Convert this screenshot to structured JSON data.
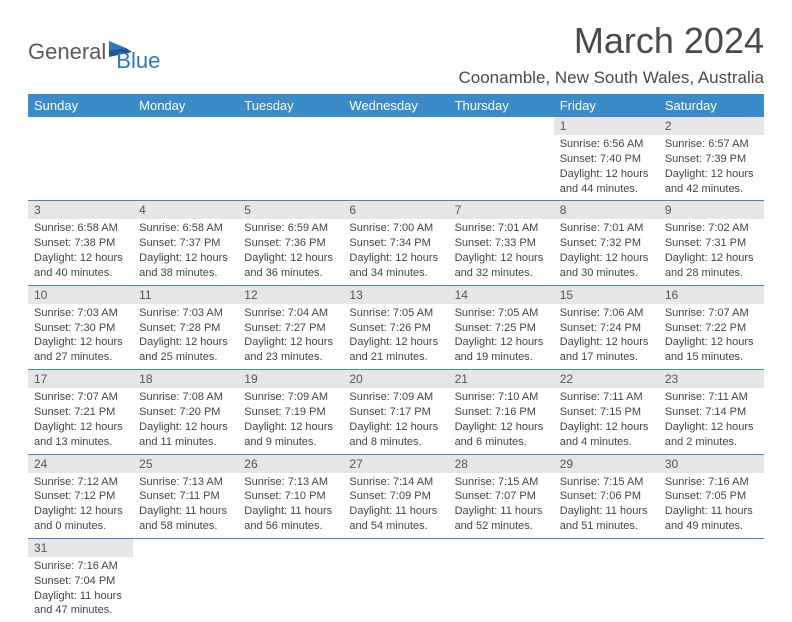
{
  "logo": {
    "text1": "General",
    "text2": "Blue"
  },
  "title": "March 2024",
  "location": "Coonamble, New South Wales, Australia",
  "header_color": "#3b8bc9",
  "daynum_bg": "#e6e6e6",
  "days_of_week": [
    "Sunday",
    "Monday",
    "Tuesday",
    "Wednesday",
    "Thursday",
    "Friday",
    "Saturday"
  ],
  "weeks": [
    [
      null,
      null,
      null,
      null,
      null,
      {
        "n": "1",
        "sr": "6:56 AM",
        "ss": "7:40 PM",
        "dl": "12 hours and 44 minutes."
      },
      {
        "n": "2",
        "sr": "6:57 AM",
        "ss": "7:39 PM",
        "dl": "12 hours and 42 minutes."
      }
    ],
    [
      {
        "n": "3",
        "sr": "6:58 AM",
        "ss": "7:38 PM",
        "dl": "12 hours and 40 minutes."
      },
      {
        "n": "4",
        "sr": "6:58 AM",
        "ss": "7:37 PM",
        "dl": "12 hours and 38 minutes."
      },
      {
        "n": "5",
        "sr": "6:59 AM",
        "ss": "7:36 PM",
        "dl": "12 hours and 36 minutes."
      },
      {
        "n": "6",
        "sr": "7:00 AM",
        "ss": "7:34 PM",
        "dl": "12 hours and 34 minutes."
      },
      {
        "n": "7",
        "sr": "7:01 AM",
        "ss": "7:33 PM",
        "dl": "12 hours and 32 minutes."
      },
      {
        "n": "8",
        "sr": "7:01 AM",
        "ss": "7:32 PM",
        "dl": "12 hours and 30 minutes."
      },
      {
        "n": "9",
        "sr": "7:02 AM",
        "ss": "7:31 PM",
        "dl": "12 hours and 28 minutes."
      }
    ],
    [
      {
        "n": "10",
        "sr": "7:03 AM",
        "ss": "7:30 PM",
        "dl": "12 hours and 27 minutes."
      },
      {
        "n": "11",
        "sr": "7:03 AM",
        "ss": "7:28 PM",
        "dl": "12 hours and 25 minutes."
      },
      {
        "n": "12",
        "sr": "7:04 AM",
        "ss": "7:27 PM",
        "dl": "12 hours and 23 minutes."
      },
      {
        "n": "13",
        "sr": "7:05 AM",
        "ss": "7:26 PM",
        "dl": "12 hours and 21 minutes."
      },
      {
        "n": "14",
        "sr": "7:05 AM",
        "ss": "7:25 PM",
        "dl": "12 hours and 19 minutes."
      },
      {
        "n": "15",
        "sr": "7:06 AM",
        "ss": "7:24 PM",
        "dl": "12 hours and 17 minutes."
      },
      {
        "n": "16",
        "sr": "7:07 AM",
        "ss": "7:22 PM",
        "dl": "12 hours and 15 minutes."
      }
    ],
    [
      {
        "n": "17",
        "sr": "7:07 AM",
        "ss": "7:21 PM",
        "dl": "12 hours and 13 minutes."
      },
      {
        "n": "18",
        "sr": "7:08 AM",
        "ss": "7:20 PM",
        "dl": "12 hours and 11 minutes."
      },
      {
        "n": "19",
        "sr": "7:09 AM",
        "ss": "7:19 PM",
        "dl": "12 hours and 9 minutes."
      },
      {
        "n": "20",
        "sr": "7:09 AM",
        "ss": "7:17 PM",
        "dl": "12 hours and 8 minutes."
      },
      {
        "n": "21",
        "sr": "7:10 AM",
        "ss": "7:16 PM",
        "dl": "12 hours and 6 minutes."
      },
      {
        "n": "22",
        "sr": "7:11 AM",
        "ss": "7:15 PM",
        "dl": "12 hours and 4 minutes."
      },
      {
        "n": "23",
        "sr": "7:11 AM",
        "ss": "7:14 PM",
        "dl": "12 hours and 2 minutes."
      }
    ],
    [
      {
        "n": "24",
        "sr": "7:12 AM",
        "ss": "7:12 PM",
        "dl": "12 hours and 0 minutes."
      },
      {
        "n": "25",
        "sr": "7:13 AM",
        "ss": "7:11 PM",
        "dl": "11 hours and 58 minutes."
      },
      {
        "n": "26",
        "sr": "7:13 AM",
        "ss": "7:10 PM",
        "dl": "11 hours and 56 minutes."
      },
      {
        "n": "27",
        "sr": "7:14 AM",
        "ss": "7:09 PM",
        "dl": "11 hours and 54 minutes."
      },
      {
        "n": "28",
        "sr": "7:15 AM",
        "ss": "7:07 PM",
        "dl": "11 hours and 52 minutes."
      },
      {
        "n": "29",
        "sr": "7:15 AM",
        "ss": "7:06 PM",
        "dl": "11 hours and 51 minutes."
      },
      {
        "n": "30",
        "sr": "7:16 AM",
        "ss": "7:05 PM",
        "dl": "11 hours and 49 minutes."
      }
    ],
    [
      {
        "n": "31",
        "sr": "7:16 AM",
        "ss": "7:04 PM",
        "dl": "11 hours and 47 minutes."
      },
      null,
      null,
      null,
      null,
      null,
      null
    ]
  ],
  "labels": {
    "sunrise": "Sunrise:",
    "sunset": "Sunset:",
    "daylight": "Daylight:"
  }
}
